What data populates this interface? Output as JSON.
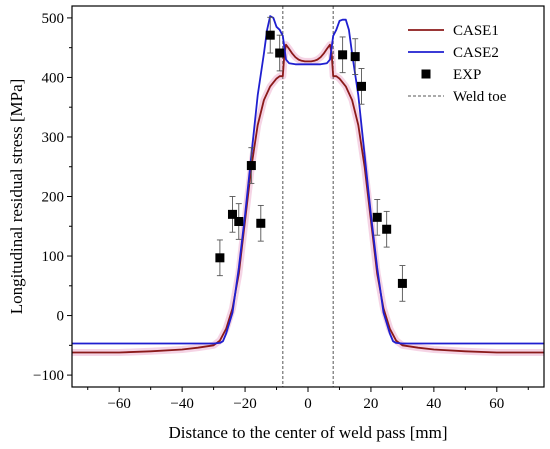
{
  "chart_data": {
    "type": "line",
    "title": "",
    "xlabel": "Distance to the center of weld pass [mm]",
    "ylabel": "Longitudinal residual stress [MPa]",
    "xlim": [
      -75,
      75
    ],
    "ylim": [
      -120,
      520
    ],
    "x_ticks": [
      -60,
      -40,
      -20,
      0,
      20,
      40,
      60
    ],
    "y_ticks": [
      -100,
      0,
      100,
      200,
      300,
      400,
      500
    ],
    "grid": false,
    "legend_position": "top-right",
    "weld_toe_x": [
      -8,
      8
    ],
    "series": [
      {
        "name": "CASE1",
        "kind": "line",
        "color": "#8b1a1a",
        "x": [
          -75,
          -60,
          -50,
          -40,
          -35,
          -30,
          -28,
          -26,
          -24,
          -22,
          -20,
          -18,
          -16,
          -14,
          -12,
          -10,
          -9,
          -8,
          -7.5,
          -7,
          -6,
          -5,
          -4,
          -3,
          -2,
          -1,
          0,
          1,
          2,
          3,
          4,
          5,
          6,
          7,
          7.5,
          8,
          9,
          10,
          12,
          14,
          16,
          18,
          20,
          22,
          24,
          26,
          28,
          30,
          35,
          40,
          50,
          60,
          75
        ],
        "y": [
          -62,
          -62,
          -60,
          -57,
          -54,
          -50,
          -42,
          -22,
          12,
          70,
          160,
          250,
          320,
          362,
          385,
          398,
          402,
          402,
          440,
          455,
          448,
          440,
          434,
          430,
          428,
          427,
          427,
          427,
          428,
          430,
          434,
          440,
          448,
          455,
          440,
          402,
          402,
          398,
          385,
          362,
          320,
          250,
          160,
          70,
          12,
          -22,
          -42,
          -50,
          -54,
          -57,
          -60,
          -62,
          -62
        ]
      },
      {
        "name": "CASE2",
        "kind": "line",
        "color": "#1f1fd0",
        "x": [
          -75,
          -40,
          -30,
          -28,
          -27,
          -26,
          -24,
          -22,
          -20,
          -18,
          -16,
          -14,
          -13,
          -12,
          -11,
          -10,
          -9,
          -8,
          -7,
          -6,
          -4,
          -2,
          0,
          2,
          4,
          6,
          7,
          8,
          9,
          10,
          11,
          12,
          13,
          14,
          16,
          18,
          20,
          22,
          24,
          26,
          27,
          28,
          30,
          40,
          75
        ],
        "y": [
          -47,
          -47,
          -47,
          -46,
          -43,
          -30,
          5,
          80,
          170,
          270,
          370,
          440,
          480,
          503,
          500,
          485,
          480,
          470,
          430,
          424,
          422,
          422,
          422,
          422,
          422,
          424,
          430,
          470,
          480,
          495,
          497,
          497,
          480,
          440,
          370,
          270,
          170,
          80,
          5,
          -30,
          -43,
          -46,
          -47,
          -47,
          -47
        ]
      },
      {
        "name": "EXP",
        "kind": "scatter",
        "color": "#000000",
        "x": [
          -28,
          -24,
          -22,
          -18,
          -15,
          -12,
          -9,
          11,
          15,
          17,
          22,
          25,
          30
        ],
        "y": [
          97,
          170,
          158,
          252,
          155,
          471,
          441,
          438,
          435,
          385,
          165,
          145,
          54
        ],
        "error": [
          30,
          30,
          30,
          30,
          30,
          30,
          30,
          30,
          30,
          30,
          30,
          30,
          30
        ]
      }
    ],
    "legend": [
      {
        "label": "CASE1",
        "symbol": "line",
        "color": "#8b1a1a"
      },
      {
        "label": "CASE2",
        "symbol": "line",
        "color": "#1f1fd0"
      },
      {
        "label": "EXP",
        "symbol": "square",
        "color": "#000000"
      },
      {
        "label": "Weld toe",
        "symbol": "dashed",
        "color": "#555555"
      }
    ]
  }
}
